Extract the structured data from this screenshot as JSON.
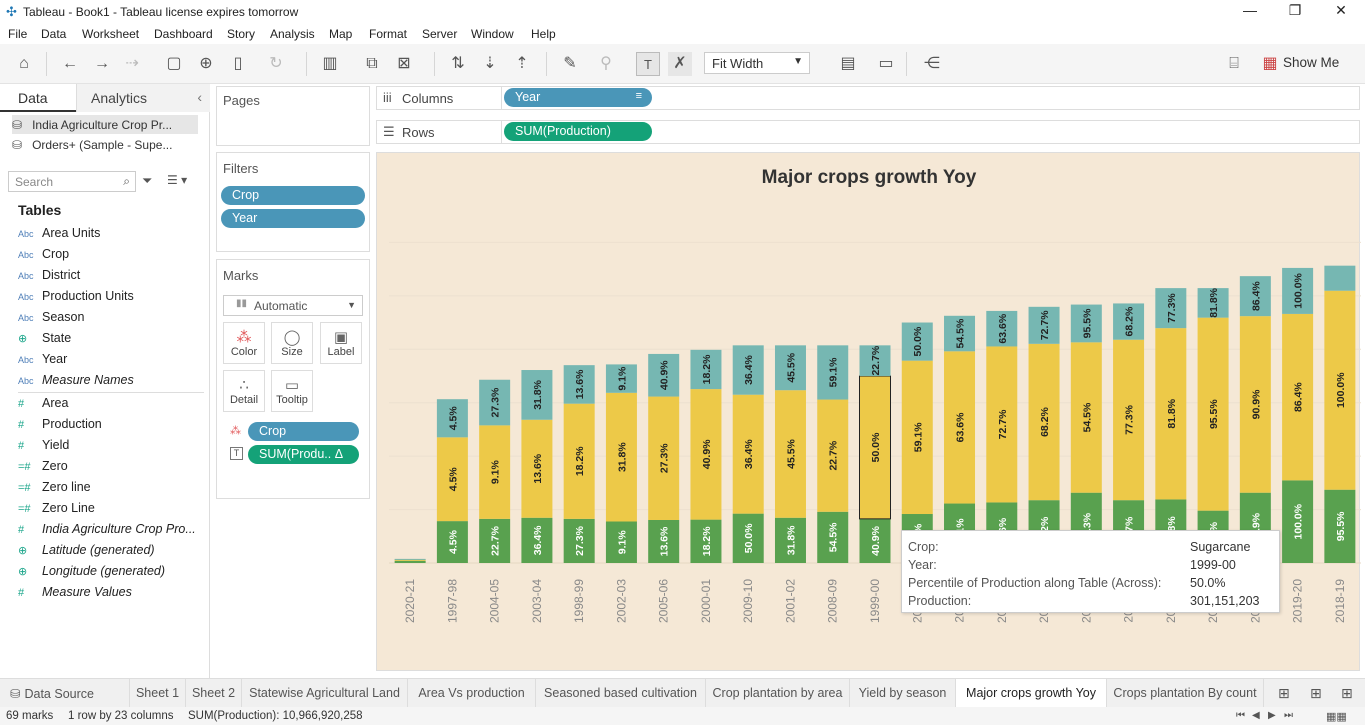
{
  "window": {
    "title": "Tableau - Book1 - Tableau license expires tomorrow"
  },
  "menu": [
    "File",
    "Data",
    "Worksheet",
    "Dashboard",
    "Story",
    "Analysis",
    "Map",
    "Format",
    "Server",
    "Window",
    "Help"
  ],
  "toolbar": {
    "fit_label": "Fit Width",
    "show_me_label": "Show Me"
  },
  "left_panel": {
    "tabs": [
      "Data",
      "Analytics"
    ],
    "data_sources": [
      "India Agriculture Crop Pr...",
      "Orders+ (Sample - Supe..."
    ],
    "search_placeholder": "Search",
    "tables_heading": "Tables",
    "fields": [
      {
        "icon": "Abc",
        "name": "Area Units",
        "italic": false
      },
      {
        "icon": "Abc",
        "name": "Crop",
        "italic": false
      },
      {
        "icon": "Abc",
        "name": "District",
        "italic": false
      },
      {
        "icon": "Abc",
        "name": "Production Units",
        "italic": false
      },
      {
        "icon": "Abc",
        "name": "Season",
        "italic": false
      },
      {
        "icon": "globe",
        "name": "State",
        "italic": false
      },
      {
        "icon": "Abc",
        "name": "Year",
        "italic": false
      },
      {
        "icon": "Abc",
        "name": "Measure Names",
        "italic": true
      },
      {
        "icon": "#",
        "name": "Area",
        "italic": false
      },
      {
        "icon": "#",
        "name": "Production",
        "italic": false
      },
      {
        "icon": "#",
        "name": "Yield",
        "italic": false
      },
      {
        "icon": "=#",
        "name": "Zero",
        "italic": false
      },
      {
        "icon": "=#",
        "name": "Zero line",
        "italic": false
      },
      {
        "icon": "=#",
        "name": "Zero Line",
        "italic": false
      },
      {
        "icon": "#",
        "name": "India Agriculture Crop Pro...",
        "italic": true
      },
      {
        "icon": "globe",
        "name": "Latitude (generated)",
        "italic": true
      },
      {
        "icon": "globe",
        "name": "Longitude (generated)",
        "italic": true
      },
      {
        "icon": "#",
        "name": "Measure Values",
        "italic": true
      }
    ]
  },
  "cards": {
    "pages": "Pages",
    "filters": "Filters",
    "filter_pills": [
      "Crop",
      "Year"
    ],
    "marks": "Marks",
    "mark_type": "Automatic",
    "mark_buttons": [
      "Color",
      "Size",
      "Label",
      "Detail",
      "Tooltip"
    ],
    "mark_pills": [
      "Crop",
      "SUM(Produ.. Δ"
    ]
  },
  "shelves": {
    "columns_label": "Columns",
    "columns_pill": "Year",
    "rows_label": "Rows",
    "rows_pill": "SUM(Production)"
  },
  "colors": {
    "green": "#59a14f",
    "yellow": "#edc948",
    "teal": "#76b7b2",
    "pill_blue": "#4a96b8",
    "pill_green": "#14a278"
  },
  "chart_data": {
    "type": "bar",
    "stacked": true,
    "title": "Major crops growth Yoy",
    "categories": [
      "2020-21",
      "1997-98",
      "2004-05",
      "2003-04",
      "1998-99",
      "2002-03",
      "2005-06",
      "2000-01",
      "2009-10",
      "2001-02",
      "2008-09",
      "1999-00",
      "2006-07",
      "2010-11",
      "2015-16",
      "2012-13",
      "2016-17",
      "2011-12",
      "2013-14",
      "2014-15",
      "2017-18",
      "2019-20",
      "2018-19"
    ],
    "series": [
      {
        "name": "",
        "color": "#59a14f",
        "totals_fraction": [
          0.006,
          0.112,
          0.118,
          0.121,
          0.118,
          0.111,
          0.115,
          0.116,
          0.132,
          0.121,
          0.137,
          0.118,
          0.131,
          0.159,
          0.162,
          0.168,
          0.188,
          0.168,
          0.17,
          0.14,
          0.188,
          0.221,
          0.196
        ],
        "labels": [
          "",
          "4.5%",
          "22.7%",
          "36.4%",
          "27.3%",
          "9.1%",
          "13.6%",
          "18.2%",
          "50.0%",
          "31.8%",
          "54.5%",
          "40.9%",
          "45.5%",
          "59.1%",
          "63.6%",
          "68.2%",
          "77.3%",
          "72.7%",
          "81.8%",
          "86.4%",
          "90.9%",
          "100.0%",
          "95.5%"
        ]
      },
      {
        "name": "Sugarcane",
        "color": "#edc948",
        "totals_fraction": [
          0.01,
          0.336,
          0.368,
          0.383,
          0.426,
          0.455,
          0.445,
          0.465,
          0.45,
          0.462,
          0.437,
          0.5,
          0.541,
          0.566,
          0.579,
          0.586,
          0.59,
          0.597,
          0.628,
          0.656,
          0.66,
          0.666,
          0.728
        ],
        "labels": [
          "",
          "4.5%",
          "9.1%",
          "13.6%",
          "18.2%",
          "31.8%",
          "27.3%",
          "40.9%",
          "36.4%",
          "45.5%",
          "22.7%",
          "50.0%",
          "59.1%",
          "63.6%",
          "72.7%",
          "68.2%",
          "54.5%",
          "77.3%",
          "81.8%",
          "95.5%",
          "90.9%",
          "86.4%",
          "100.0%"
        ]
      },
      {
        "name": "",
        "color": "#76b7b2",
        "totals_fraction": [
          0.011,
          0.438,
          0.49,
          0.516,
          0.529,
          0.531,
          0.559,
          0.57,
          0.582,
          0.582,
          0.582,
          0.582,
          0.643,
          0.661,
          0.674,
          0.685,
          0.691,
          0.694,
          0.735,
          0.735,
          0.767,
          0.789,
          0.795
        ],
        "labels": [
          "",
          "4.5%",
          "27.3%",
          "31.8%",
          "13.6%",
          "9.1%",
          "40.9%",
          "18.2%",
          "36.4%",
          "45.5%",
          "59.1%",
          "22.7%",
          "50.0%",
          "54.5%",
          "63.6%",
          "72.7%",
          "95.5%",
          "68.2%",
          "77.3%",
          "81.8%",
          "86.4%",
          "100.0%",
          "90.9%"
        ]
      }
    ],
    "selected_index": 11,
    "grid": true
  },
  "tooltip": [
    {
      "key": "Crop:",
      "value": "Sugarcane"
    },
    {
      "key": "Year:",
      "value": "1999-00"
    },
    {
      "key": "Percentile of Production along Table (Across):",
      "value": "50.0%"
    },
    {
      "key": "Production:",
      "value": "301,151,203"
    }
  ],
  "sheet_tabs": {
    "data_source": "Data Source",
    "sheets": [
      "Sheet 1",
      "Sheet 2",
      "Statewise Agricultural Land",
      "Area Vs production",
      "Seasoned based cultivation",
      "Crop plantation by area",
      "Yield by season",
      "Major crops growth Yoy",
      "Crops plantation By count"
    ],
    "active": "Major crops growth Yoy"
  },
  "status": {
    "marks": "69 marks",
    "rows_cols": "1 row by 23 columns",
    "sum": "SUM(Production): 10,966,920,258"
  }
}
